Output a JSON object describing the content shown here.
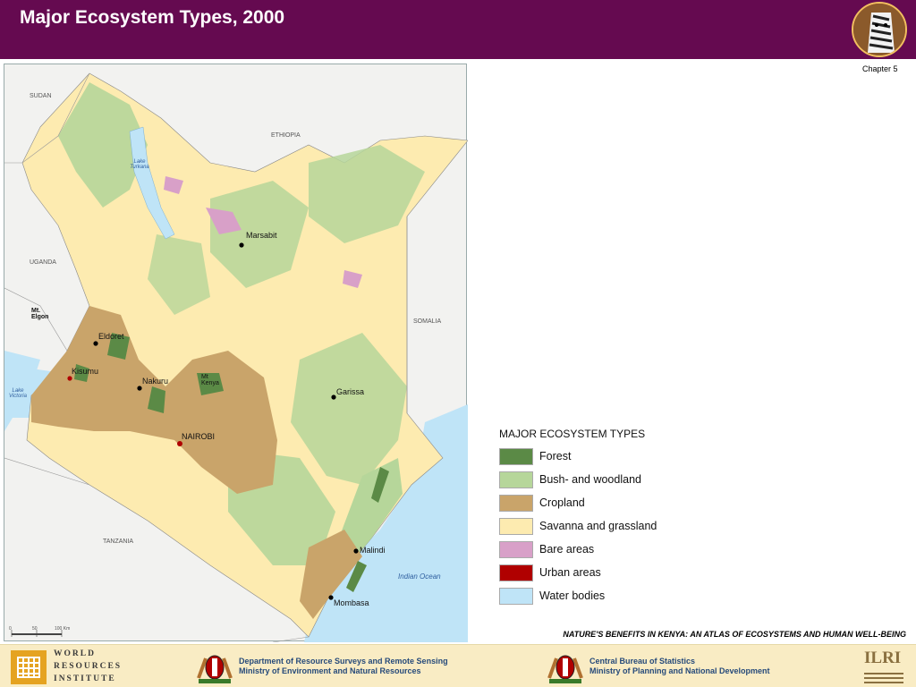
{
  "header": {
    "title": "Major Ecosystem Types, 2000",
    "background": "#650a50"
  },
  "chapter": "Chapter 5",
  "map": {
    "countries": [
      "SUDAN",
      "ETHIOPIA",
      "UGANDA",
      "SOMALIA",
      "TANZANIA"
    ],
    "water_labels": [
      "Lake Turkana",
      "Lake Victoria",
      "Indian Ocean"
    ],
    "mountain_labels": [
      "Mt. Elgon",
      "Mt Kenya"
    ],
    "cities": [
      "Marsabit",
      "Eldoret",
      "Kisumu",
      "Nakuru",
      "NAIROBI",
      "Garissa",
      "Malindi",
      "Mombasa"
    ],
    "scale_bar": {
      "ticks": [
        "0",
        "50",
        "100 Km"
      ]
    }
  },
  "legend": {
    "title": "MAJOR ECOSYSTEM TYPES",
    "items": [
      {
        "label": "Forest",
        "color": "#5b8a46"
      },
      {
        "label": "Bush- and woodland",
        "color": "#b6d69a"
      },
      {
        "label": "Cropland",
        "color": "#c9a46a"
      },
      {
        "label": "Savanna and grassland",
        "color": "#fdebb0"
      },
      {
        "label": "Bare areas",
        "color": "#d8a0c8"
      },
      {
        "label": "Urban areas",
        "color": "#b00000"
      },
      {
        "label": "Water bodies",
        "color": "#bfe4f7"
      }
    ]
  },
  "atlas_title": "NATURE'S BENEFITS IN KENYA: AN ATLAS OF ECOSYSTEMS AND HUMAN WELL-BEING",
  "footer": {
    "wri": [
      "WORLD",
      "RESOURCES",
      "INSTITUTE"
    ],
    "drsrs": [
      "Department of Resource Surveys and Remote Sensing",
      "Ministry of Environment and Natural Resources"
    ],
    "cbs": [
      "Central Bureau of Statistics",
      "Ministry of Planning and National Development"
    ],
    "ilri": "ILRI"
  }
}
